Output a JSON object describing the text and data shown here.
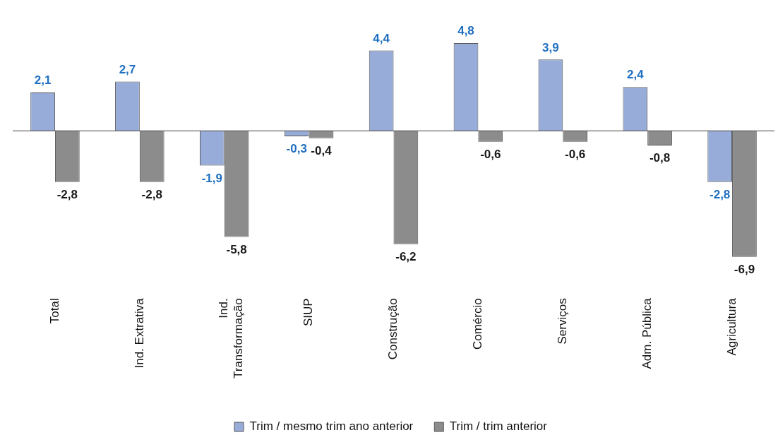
{
  "chart_data": {
    "type": "bar",
    "categories": [
      "Total",
      "Ind. Extrativa",
      "Ind. Transformação",
      "SIUP",
      "Construção",
      "Comércio",
      "Serviços",
      "Adm. Pública",
      "Agricultura"
    ],
    "series": [
      {
        "name": "Trim / mesmo trim ano anterior",
        "color": "#98acd9",
        "values": [
          2.1,
          2.7,
          -1.9,
          -0.3,
          4.4,
          4.8,
          3.9,
          2.4,
          -2.8
        ],
        "value_labels": [
          "2,1",
          "2,7",
          "-1,9",
          "-0,3",
          "4,4",
          "4,8",
          "3,9",
          "2,4",
          "-2,8"
        ]
      },
      {
        "name": "Trim / trim anterior",
        "color": "#8c8c8c",
        "values": [
          -2.8,
          -2.8,
          -5.8,
          -0.4,
          -6.2,
          -0.6,
          -0.6,
          -0.8,
          -6.9
        ],
        "value_labels": [
          "-2,8",
          "-2,8",
          "-5,8",
          "-0,4",
          "-6,2",
          "-0,6",
          "-0,6",
          "-0,8",
          "-6,9"
        ]
      }
    ],
    "grid": false,
    "legend": "bottom",
    "tick_labels": "x"
  }
}
